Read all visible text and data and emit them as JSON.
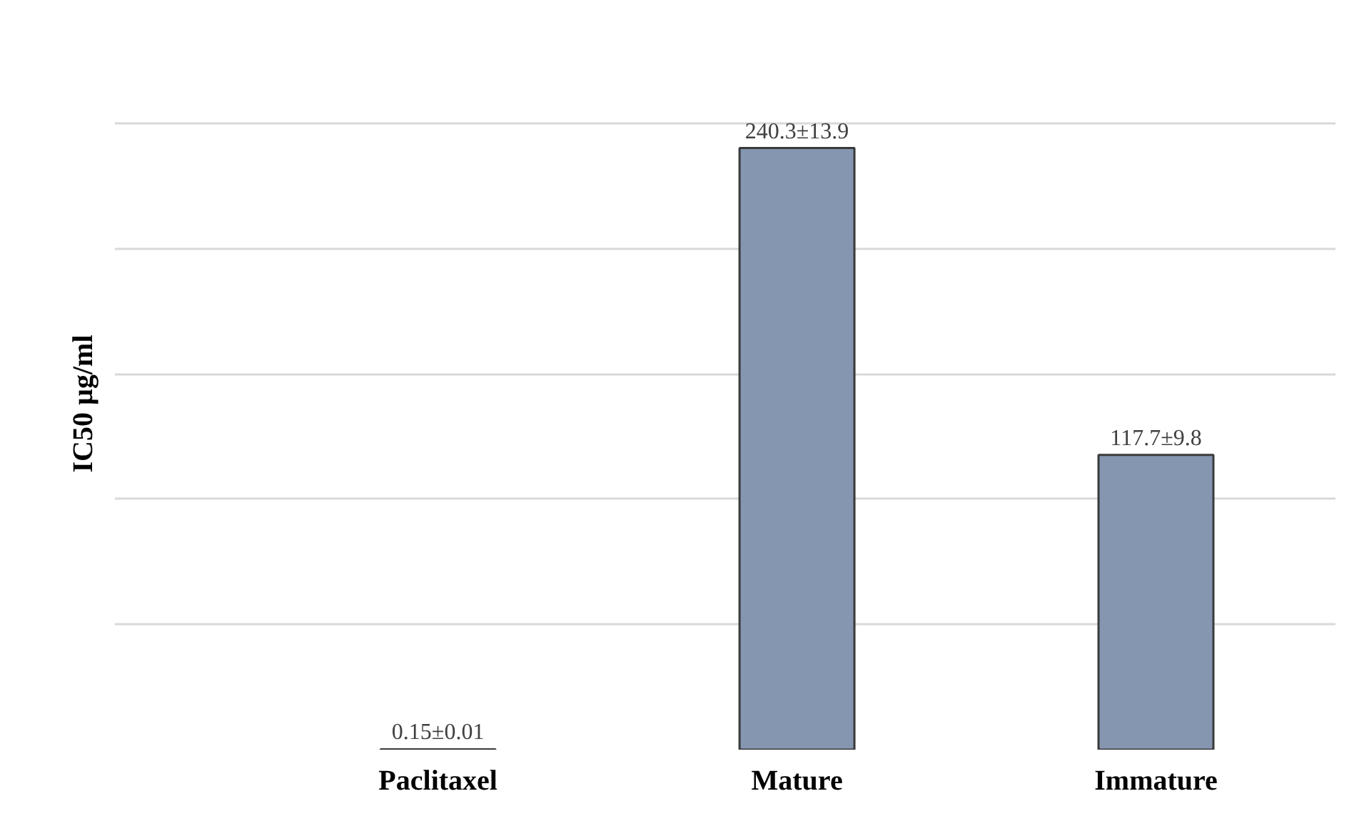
{
  "chart_data": {
    "type": "bar",
    "ylabel": "IC50 µg/ml",
    "categories": [
      "Paclitaxel",
      "Mature",
      "Immature"
    ],
    "values": [
      0.15,
      240.3,
      117.7
    ],
    "value_labels": [
      "0.15±0.01",
      "240.3±13.9",
      "117.7±9.8"
    ],
    "color": "#8496b0",
    "grid": "y",
    "tick_labels": "x"
  }
}
